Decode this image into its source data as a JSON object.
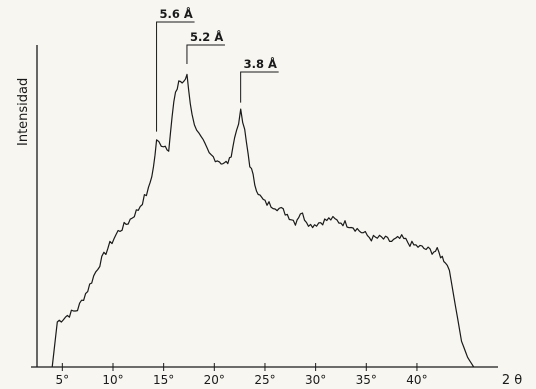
{
  "chart_data": {
    "type": "line",
    "ylabel": "Intensidad",
    "xlabel": "2 θ",
    "xlim": [
      2.5,
      48
    ],
    "ylim": [
      0,
      100
    ],
    "y_ticks_shown": false,
    "x_ticks": [
      5,
      10,
      15,
      20,
      25,
      30,
      35,
      40
    ],
    "x_tick_labels": [
      "5°",
      "10°",
      "15°",
      "20°",
      "25°",
      "30°",
      "35°",
      "40°"
    ],
    "series": [
      {
        "x": [
          4.0,
          4.5,
          5.5,
          6.5,
          7.5,
          8.5,
          9.5,
          10.5,
          11.5,
          12.5,
          13.5,
          14.0,
          14.3,
          15.0,
          15.5,
          16.0,
          16.5,
          17.0,
          17.3,
          17.8,
          18.5,
          19.5,
          20.5,
          21.0,
          21.5,
          22.0,
          22.6,
          23.0,
          23.5,
          24.0,
          24.5,
          25.0,
          26.0,
          27.0,
          28.0,
          28.5,
          29.5,
          30.5,
          31.5,
          32.5,
          33.5,
          34.5,
          35.5,
          36.5,
          37.5,
          38.5,
          39.5,
          40.5,
          41.5,
          42.0,
          42.5,
          42.8,
          43.2,
          43.8,
          44.4,
          45.0,
          45.6
        ],
        "y": [
          0,
          14,
          16,
          18,
          24,
          31,
          37,
          42,
          45,
          49,
          55,
          62,
          70,
          69,
          68,
          82,
          89,
          88,
          91,
          78,
          72,
          66,
          64,
          63,
          64,
          71,
          79,
          73,
          63,
          57,
          53,
          51,
          50,
          48,
          45,
          48,
          44,
          45,
          46,
          45,
          44,
          42,
          40,
          40,
          39,
          40,
          38,
          37,
          36,
          36,
          34,
          33,
          30,
          19,
          8,
          3,
          0
        ]
      }
    ],
    "annotations": [
      {
        "label": "5.6 Å",
        "x": 14.3,
        "y": 70
      },
      {
        "label": "5.2 Å",
        "x": 17.3,
        "y": 91
      },
      {
        "label": "3.8 Å",
        "x": 22.6,
        "y": 79
      }
    ]
  }
}
